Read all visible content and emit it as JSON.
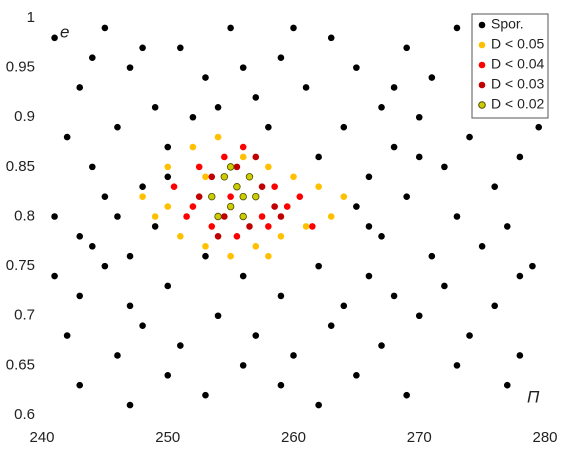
{
  "chart_data": {
    "type": "scatter",
    "xlabel": "Π",
    "ylabel": "e",
    "xlim": [
      240,
      280
    ],
    "ylim": [
      0.6,
      1
    ],
    "xticks": [
      240,
      250,
      260,
      270,
      280
    ],
    "yticks": [
      0.6,
      0.65,
      0.7,
      0.75,
      0.8,
      0.85,
      0.9,
      0.95,
      1
    ],
    "grid": false,
    "legend": "upper right",
    "series": [
      {
        "name": "Spor.",
        "color": "#000000",
        "x": [
          241,
          243,
          245,
          247,
          249,
          251,
          253,
          255,
          257,
          259,
          261,
          263,
          265,
          267,
          269,
          271,
          273,
          275,
          277,
          279,
          242,
          244,
          246,
          248,
          250,
          252,
          262,
          264,
          266,
          268,
          270,
          272,
          274,
          276,
          278,
          279.5,
          241,
          243,
          245,
          247,
          249,
          265,
          267,
          269,
          271,
          273,
          275,
          277,
          279,
          241,
          243,
          245,
          247,
          250,
          253,
          256,
          259,
          262,
          264,
          266,
          268,
          272,
          276,
          278,
          242,
          246,
          248,
          251,
          254,
          257,
          260,
          263,
          267,
          270,
          274,
          278,
          243,
          247,
          250,
          253,
          256,
          259,
          262,
          265,
          269,
          273,
          277,
          244,
          248,
          256,
          260,
          268,
          276,
          254,
          258,
          250,
          270,
          246,
          244,
          266
        ],
        "y": [
          0.98,
          0.93,
          0.99,
          0.95,
          0.91,
          0.97,
          0.94,
          0.99,
          0.92,
          0.96,
          0.93,
          0.98,
          0.95,
          0.91,
          0.97,
          0.94,
          0.99,
          0.92,
          0.96,
          0.94,
          0.88,
          0.85,
          0.89,
          0.83,
          0.87,
          0.9,
          0.86,
          0.89,
          0.84,
          0.87,
          0.9,
          0.85,
          0.88,
          0.83,
          0.86,
          0.89,
          0.8,
          0.78,
          0.82,
          0.76,
          0.79,
          0.81,
          0.78,
          0.82,
          0.76,
          0.8,
          0.77,
          0.79,
          0.75,
          0.74,
          0.72,
          0.75,
          0.71,
          0.73,
          0.76,
          0.74,
          0.72,
          0.75,
          0.71,
          0.74,
          0.72,
          0.73,
          0.71,
          0.74,
          0.68,
          0.66,
          0.69,
          0.67,
          0.7,
          0.68,
          0.66,
          0.69,
          0.67,
          0.7,
          0.68,
          0.66,
          0.63,
          0.61,
          0.64,
          0.62,
          0.65,
          0.63,
          0.61,
          0.64,
          0.62,
          0.65,
          0.63,
          0.96,
          0.97,
          0.95,
          0.99,
          0.93,
          0.98,
          0.91,
          0.89,
          0.84,
          0.86,
          0.8,
          0.77,
          0.79
        ]
      },
      {
        "name": "D < 0.05",
        "color": "#ffc000",
        "x": [
          248,
          249,
          250,
          251,
          252,
          253,
          254,
          255,
          256,
          257,
          258,
          259,
          260,
          261,
          262,
          263,
          264,
          258,
          253,
          250
        ],
        "y": [
          0.82,
          0.8,
          0.85,
          0.78,
          0.87,
          0.77,
          0.88,
          0.76,
          0.86,
          0.77,
          0.85,
          0.78,
          0.84,
          0.79,
          0.83,
          0.8,
          0.82,
          0.76,
          0.84,
          0.81
        ]
      },
      {
        "name": "D < 0.04",
        "color": "#ff0000",
        "x": [
          250.5,
          251.5,
          252.5,
          253.5,
          254.5,
          255.5,
          256.5,
          257.5,
          258.5,
          259.5,
          260.5,
          261.5,
          252,
          255,
          258,
          256
        ],
        "y": [
          0.83,
          0.8,
          0.85,
          0.79,
          0.86,
          0.78,
          0.84,
          0.8,
          0.83,
          0.81,
          0.82,
          0.79,
          0.81,
          0.82,
          0.79,
          0.87
        ]
      },
      {
        "name": "D < 0.03",
        "color": "#c00000",
        "x": [
          252.5,
          253.5,
          254.5,
          255.5,
          256.5,
          257.5,
          258.5,
          259,
          254,
          257
        ],
        "y": [
          0.82,
          0.84,
          0.8,
          0.85,
          0.79,
          0.83,
          0.81,
          0.8,
          0.78,
          0.86
        ]
      },
      {
        "name": "D < 0.02",
        "color": "#cccc00",
        "edgecolor": "#4d4d00",
        "x": [
          253.5,
          254.5,
          255,
          255.5,
          256,
          256.5,
          257,
          255,
          254,
          256
        ],
        "y": [
          0.82,
          0.84,
          0.81,
          0.83,
          0.8,
          0.84,
          0.82,
          0.85,
          0.8,
          0.82
        ]
      }
    ]
  }
}
